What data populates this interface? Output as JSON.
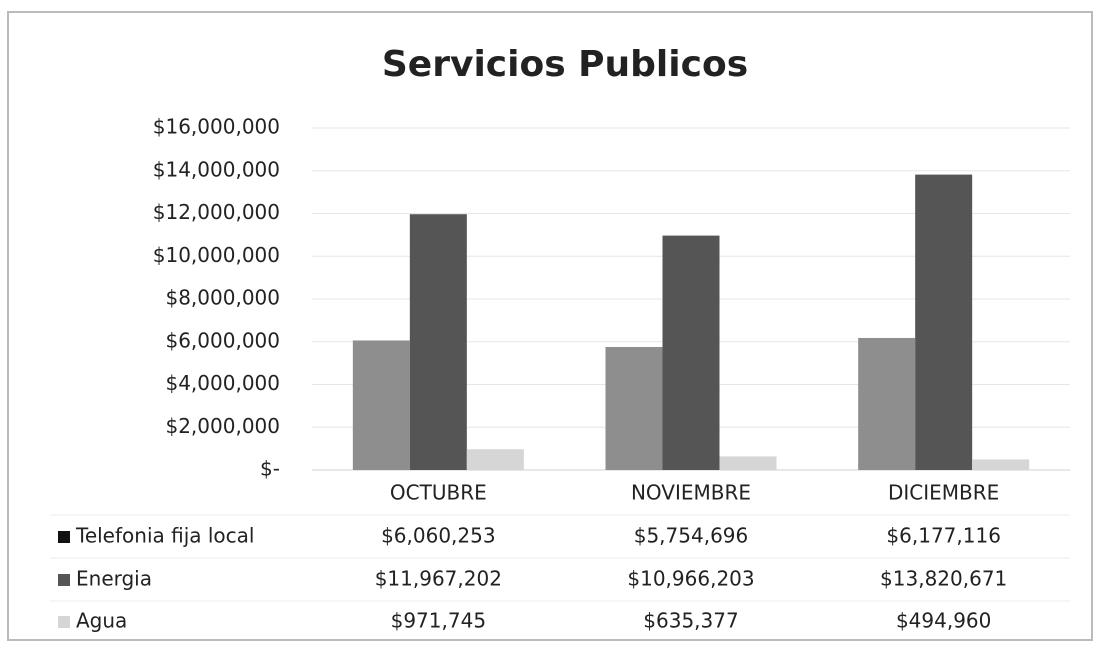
{
  "chart_data": {
    "type": "bar",
    "title": "Servicios Publicos",
    "categories": [
      "OCTUBRE",
      "NOVIEMBRE",
      "DICIEMBRE"
    ],
    "series": [
      {
        "name": "Telefonia fija local",
        "color": "#8e8e8e",
        "values": [
          6060253,
          5754696,
          6177116
        ],
        "value_labels": [
          "$6,060,253",
          "$5,754,696",
          "$6,177,116"
        ]
      },
      {
        "name": "Energia",
        "color": "#555555",
        "values": [
          11967202,
          10966203,
          13820671
        ],
        "value_labels": [
          "$11,967,202",
          "$10,966,203",
          "$13,820,671"
        ]
      },
      {
        "name": "Agua",
        "color": "#d6d6d6",
        "values": [
          971745,
          635377,
          494960
        ],
        "value_labels": [
          "$971,745",
          "$635,377",
          "$494,960"
        ]
      }
    ],
    "ylim": [
      0,
      16000000
    ],
    "yticks": [
      {
        "value": 0,
        "label": "$-"
      },
      {
        "value": 2000000,
        "label": "$2,000,000"
      },
      {
        "value": 4000000,
        "label": "$4,000,000"
      },
      {
        "value": 6000000,
        "label": "$6,000,000"
      },
      {
        "value": 8000000,
        "label": "$8,000,000"
      },
      {
        "value": 10000000,
        "label": "$10,000,000"
      },
      {
        "value": 12000000,
        "label": "$12,000,000"
      },
      {
        "value": 14000000,
        "label": "$14,000,000"
      },
      {
        "value": 16000000,
        "label": "$16,000,000"
      }
    ],
    "grid": true
  }
}
